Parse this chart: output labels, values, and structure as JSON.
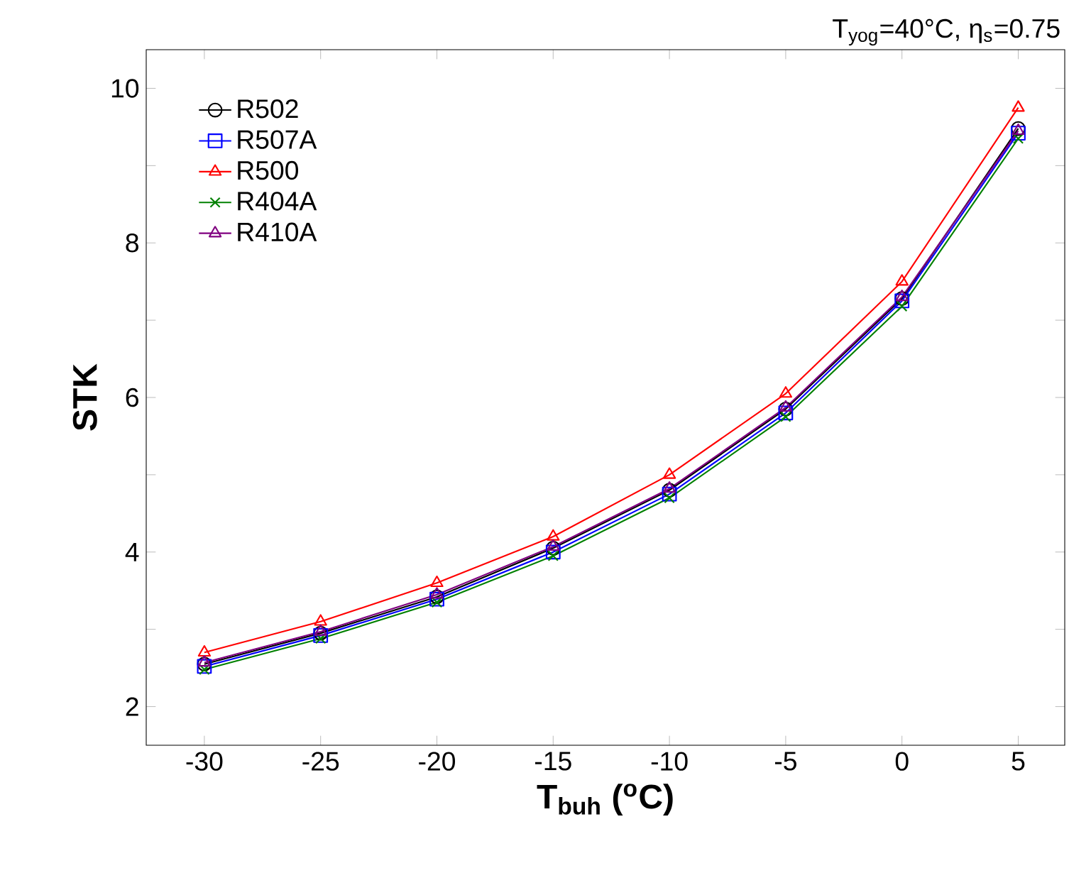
{
  "chart_data": {
    "type": "line",
    "title": "T$_{yog}$=40°C, η$_{s}$=0.75",
    "xlabel": "**T$_{buh}$ ($^{o}$C)**",
    "ylabel": "**STK**",
    "x": [
      -30,
      -25,
      -20,
      -15,
      -10,
      -5,
      0,
      5
    ],
    "xlim": [
      -32.5,
      7
    ],
    "xticks": [
      -30,
      -25,
      -20,
      -15,
      -10,
      -5,
      0,
      5
    ],
    "ylim": [
      1.5,
      10.5
    ],
    "yticks": [
      2,
      {
        "value": 3,
        "label": null
      },
      4,
      {
        "value": 5,
        "label": null
      },
      6,
      {
        "value": 7,
        "label": null
      },
      8,
      {
        "value": 9,
        "label": null
      },
      10
    ],
    "legend": "top left",
    "grid": false,
    "line_style": "solid",
    "series": [
      {
        "name": "R502",
        "color": "#000000",
        "marker": "circle",
        "values": [
          2.55,
          2.95,
          3.42,
          4.05,
          4.8,
          5.85,
          7.28,
          9.48
        ]
      },
      {
        "name": "R507A",
        "color": "#0000ff",
        "marker": "square",
        "values": [
          2.52,
          2.92,
          3.39,
          4.0,
          4.75,
          5.8,
          7.25,
          9.42
        ]
      },
      {
        "name": "R500",
        "color": "#ff0000",
        "marker": "triangle",
        "values": [
          2.7,
          3.1,
          3.6,
          4.2,
          5.0,
          6.05,
          7.5,
          9.75
        ]
      },
      {
        "name": "R404A",
        "color": "#008000",
        "marker": "cross",
        "values": [
          2.48,
          2.88,
          3.35,
          3.95,
          4.7,
          5.75,
          7.18,
          9.35
        ]
      },
      {
        "name": "R410A",
        "color": "#800080",
        "marker": "triangle",
        "values": [
          2.57,
          2.97,
          3.45,
          4.07,
          4.82,
          5.87,
          7.3,
          9.45
        ]
      }
    ]
  }
}
